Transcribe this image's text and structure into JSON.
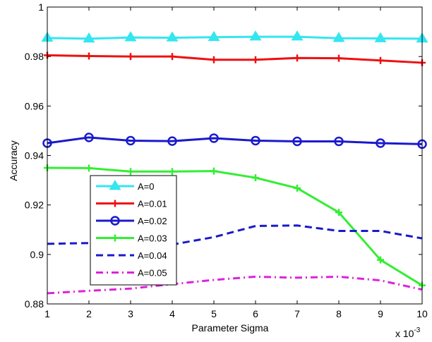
{
  "chart_data": {
    "type": "line",
    "xlabel": "Parameter Sigma",
    "ylabel": "Accuracy",
    "x_multiplier_label": "x 10",
    "x_multiplier_exponent": "-3",
    "x": [
      1,
      2,
      3,
      4,
      5,
      6,
      7,
      8,
      9,
      10
    ],
    "xlim": [
      1,
      10
    ],
    "ylim": [
      0.88,
      1
    ],
    "xticks": [
      "1",
      "2",
      "3",
      "4",
      "5",
      "6",
      "7",
      "8",
      "9",
      "10"
    ],
    "yticks": [
      {
        "value": 0.88,
        "label": "0.88"
      },
      {
        "value": 0.9,
        "label": "0.9"
      },
      {
        "value": 0.92,
        "label": "0.92"
      },
      {
        "value": 0.94,
        "label": "0.94"
      },
      {
        "value": 0.96,
        "label": "0.96"
      },
      {
        "value": 0.98,
        "label": "0.98"
      },
      {
        "value": 1.0,
        "label": "1"
      }
    ],
    "grid": false,
    "legend_position": "lower-left",
    "series": [
      {
        "name": "A=0",
        "color": "#33e6f0",
        "marker": "triangle",
        "dash": "solid",
        "values": [
          0.9875,
          0.9872,
          0.9877,
          0.9876,
          0.9878,
          0.988,
          0.988,
          0.9874,
          0.9873,
          0.9872
        ]
      },
      {
        "name": "A=0.01",
        "color": "#ee1111",
        "marker": "plus",
        "dash": "solid",
        "values": [
          0.9805,
          0.9802,
          0.98,
          0.98,
          0.9787,
          0.9787,
          0.9794,
          0.9793,
          0.9784,
          0.9775
        ]
      },
      {
        "name": "A=0.02",
        "color": "#1a1acc",
        "marker": "circle",
        "dash": "solid",
        "values": [
          0.945,
          0.9473,
          0.946,
          0.9458,
          0.947,
          0.946,
          0.9457,
          0.9457,
          0.945,
          0.9446
        ]
      },
      {
        "name": "A=0.03",
        "color": "#33ee33",
        "marker": "plus",
        "dash": "solid",
        "values": [
          0.935,
          0.9349,
          0.9335,
          0.9335,
          0.9337,
          0.931,
          0.9268,
          0.917,
          0.8978,
          0.8875
        ]
      },
      {
        "name": "A=0.04",
        "color": "#1a1acc",
        "marker": "none",
        "dash": "dashed",
        "values": [
          0.9043,
          0.9046,
          0.904,
          0.904,
          0.907,
          0.9115,
          0.9117,
          0.9095,
          0.9095,
          0.9065
        ]
      },
      {
        "name": "A=0.05",
        "color": "#dd22dd",
        "marker": "none",
        "dash": "dashdot",
        "values": [
          0.8843,
          0.8853,
          0.8862,
          0.888,
          0.8897,
          0.891,
          0.8906,
          0.891,
          0.8895,
          0.8858
        ]
      }
    ]
  }
}
